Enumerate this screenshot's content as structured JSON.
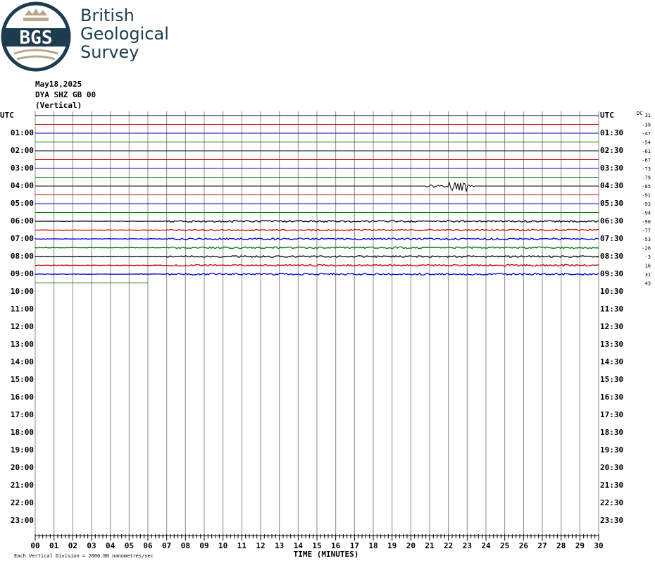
{
  "logo": {
    "mark": "BGS",
    "lines": [
      "British",
      "Geological",
      "Survey"
    ]
  },
  "header": [
    "May18,2025",
    "DYA SHZ GB 00",
    "(Vertical)"
  ],
  "left_labels": [
    "UTC",
    "01:00",
    "02:00",
    "03:00",
    "04:00",
    "05:00",
    "06:00",
    "07:00",
    "08:00",
    "09:00",
    "10:00",
    "11:00",
    "12:00",
    "13:00",
    "14:00",
    "15:00",
    "16:00",
    "17:00",
    "18:00",
    "19:00",
    "20:00",
    "21:00",
    "22:00",
    "23:00"
  ],
  "right_labels": [
    "UTC",
    "01:30",
    "02:30",
    "03:30",
    "04:30",
    "05:30",
    "06:30",
    "07:30",
    "08:30",
    "09:30",
    "10:30",
    "11:30",
    "12:30",
    "13:30",
    "14:30",
    "15:30",
    "16:30",
    "17:30",
    "18:30",
    "19:30",
    "20:30",
    "21:30",
    "22:30",
    "23:30"
  ],
  "dc_title": "DC",
  "dc_values": [
    "31",
    "-39",
    "-47",
    "-54",
    "-61",
    "-67",
    "-73",
    "-79",
    "-85",
    "-91",
    "-93",
    "-94",
    "-90",
    "-77",
    "-53",
    "-26",
    "-3",
    "16",
    "31",
    "43"
  ],
  "x_ticks": [
    "00",
    "01",
    "02",
    "03",
    "04",
    "05",
    "06",
    "07",
    "08",
    "09",
    "10",
    "11",
    "12",
    "13",
    "14",
    "15",
    "16",
    "17",
    "18",
    "19",
    "20",
    "21",
    "22",
    "23",
    "24",
    "25",
    "26",
    "27",
    "28",
    "29",
    "30"
  ],
  "x_label": "TIME (MINUTES)",
  "footnote": "Each Vertical Division = 2000.00 nanometres/sec"
}
